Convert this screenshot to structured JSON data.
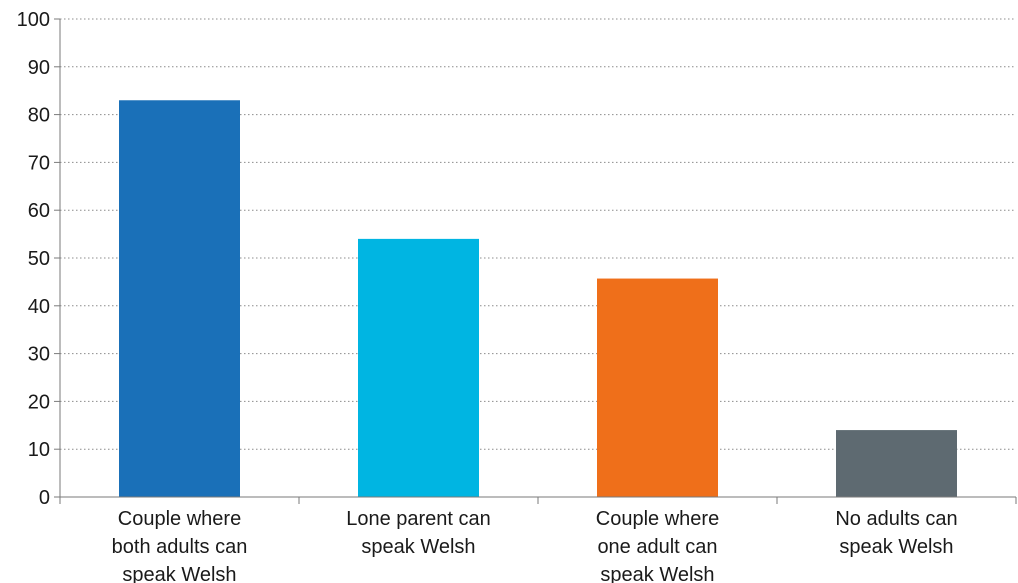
{
  "chart_data": {
    "type": "bar",
    "categories": [
      [
        "Couple where",
        "both adults can",
        "speak Welsh"
      ],
      [
        "Lone parent can",
        "speak Welsh"
      ],
      [
        "Couple where",
        "one adult can",
        "speak Welsh"
      ],
      [
        "No adults can",
        "speak Welsh"
      ]
    ],
    "values": [
      83,
      54,
      45.7,
      14
    ],
    "colors": [
      "#1a70b8",
      "#00b5e2",
      "#ef6f1a",
      "#5e6a71"
    ],
    "title": "",
    "xlabel": "",
    "ylabel": "",
    "ylim": [
      0,
      100
    ],
    "yticks": [
      0,
      10,
      20,
      30,
      40,
      50,
      60,
      70,
      80,
      90,
      100
    ],
    "grid": true,
    "legend": "none"
  }
}
